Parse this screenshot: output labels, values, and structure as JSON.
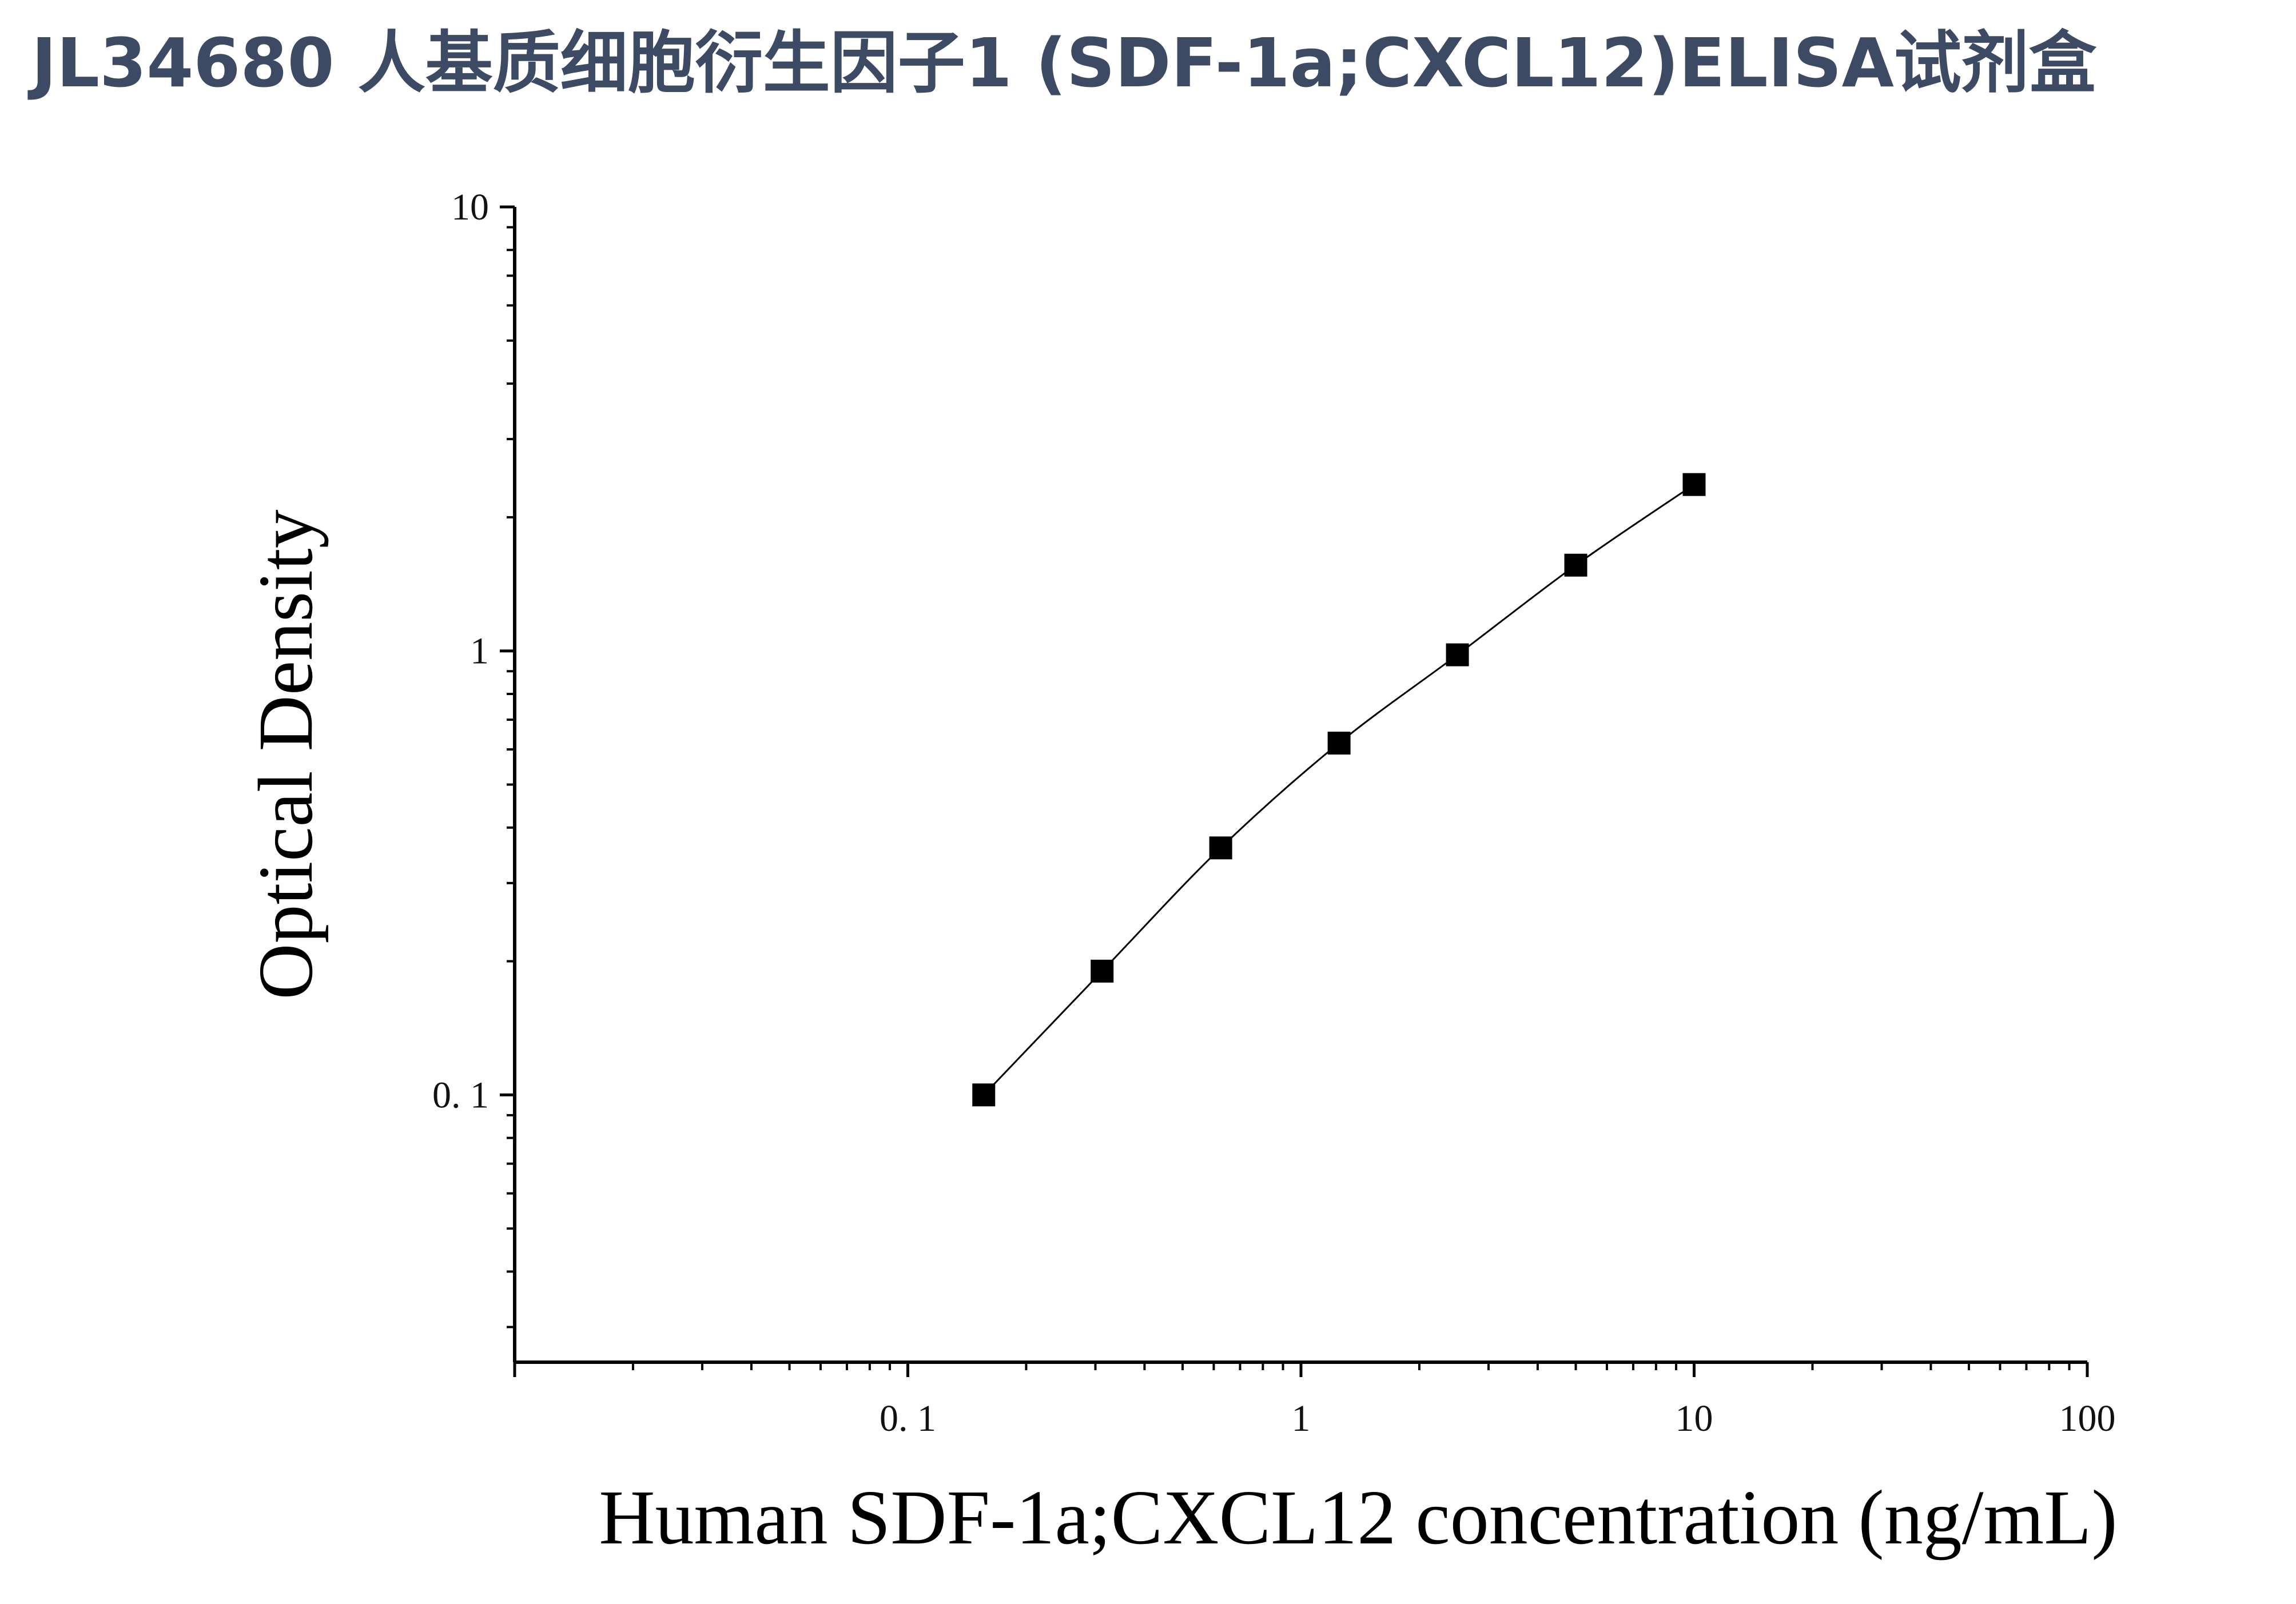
{
  "title": "JL34680 人基质细胞衍生因子1 (SDF-1a;CXCL12)ELISA试剂盒",
  "chart_data": {
    "type": "scatter",
    "xlabel": "Human SDF-1a;CXCL12 concentration (ng/mL)",
    "ylabel": "Optical Density",
    "xscale": "log",
    "yscale": "log",
    "xlim": [
      0.01,
      100
    ],
    "ylim": [
      0.025,
      10
    ],
    "xticks": [
      {
        "value": 0.1,
        "label": "0. 1"
      },
      {
        "value": 1,
        "label": "1"
      },
      {
        "value": 10,
        "label": "10"
      },
      {
        "value": 100,
        "label": "100"
      }
    ],
    "yticks": [
      {
        "value": 0.1,
        "label": "0. 1"
      },
      {
        "value": 1,
        "label": "1"
      },
      {
        "value": 10,
        "label": "10"
      }
    ],
    "grid": false,
    "marker": "square",
    "marker_color": "#000000",
    "series": [
      {
        "x": [
          0.156,
          0.312,
          0.625,
          1.25,
          2.5,
          5,
          10
        ],
        "y": [
          0.1,
          0.19,
          0.36,
          0.62,
          0.98,
          1.56,
          2.37
        ],
        "fit_line": true
      }
    ]
  }
}
